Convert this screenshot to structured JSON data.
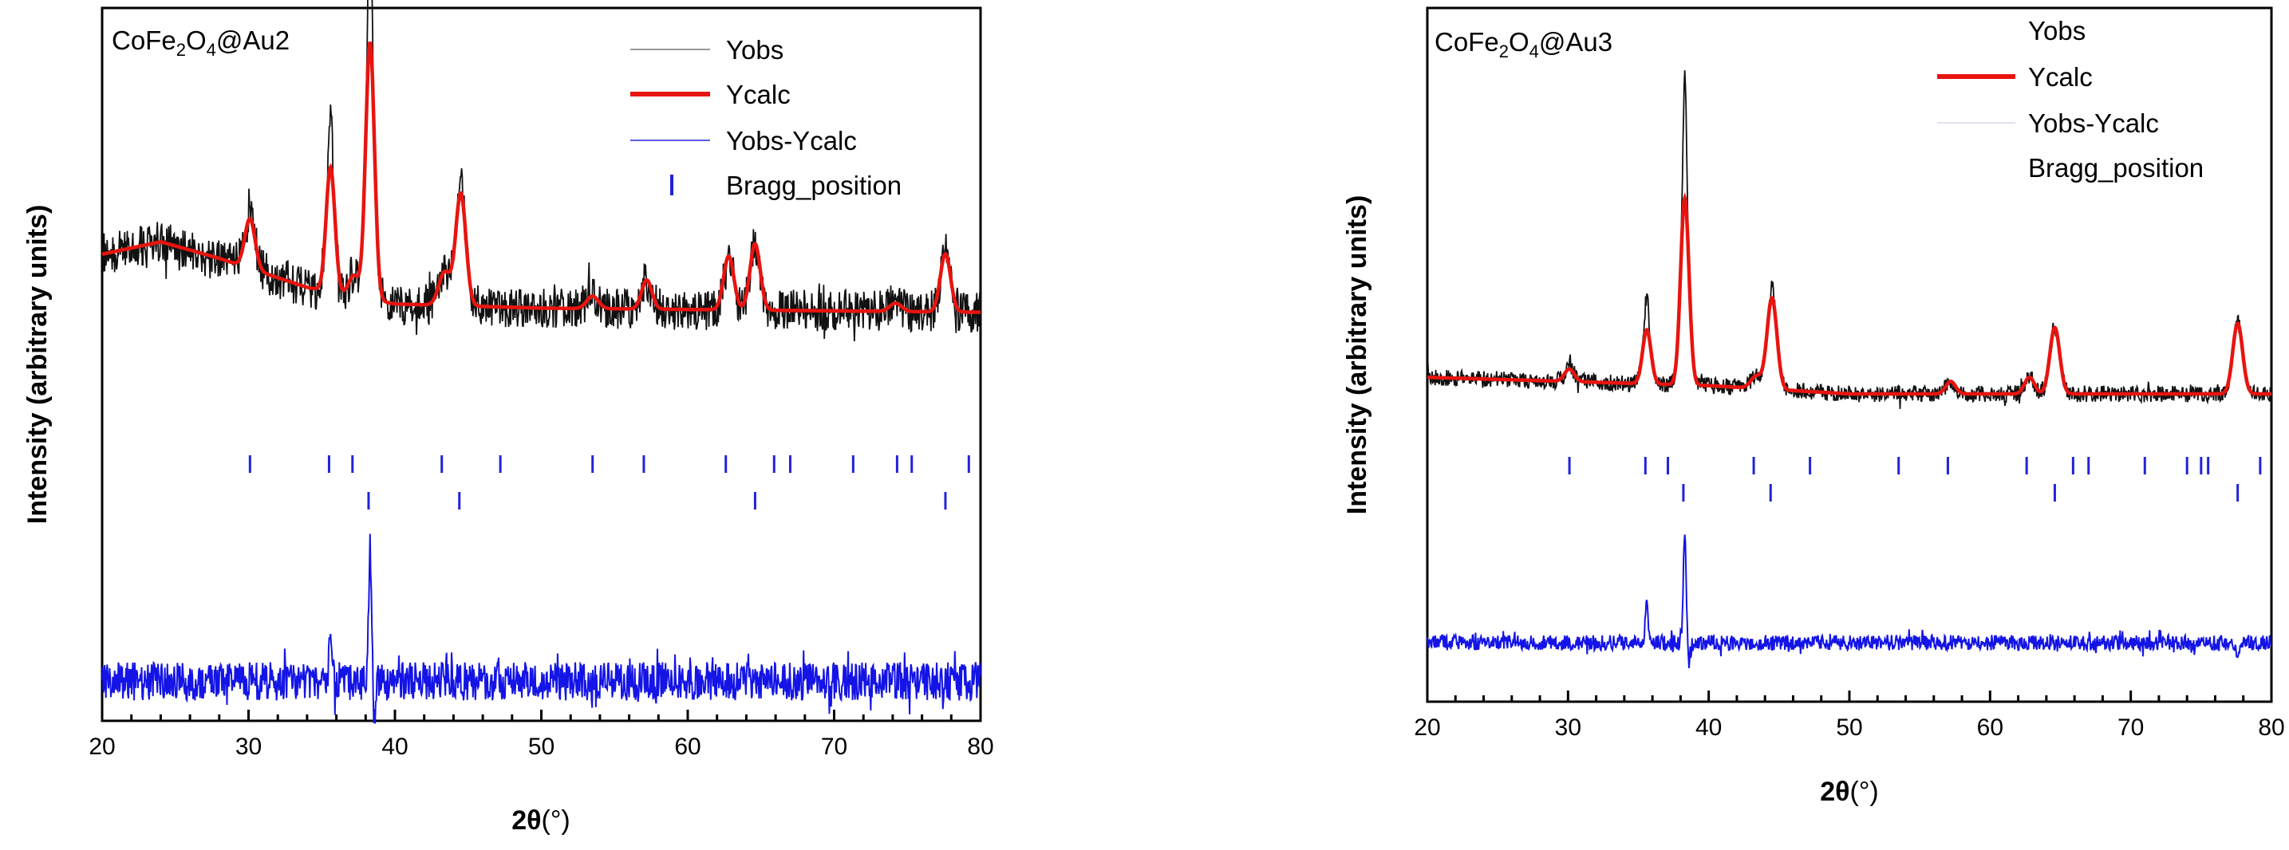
{
  "chart_data": [
    {
      "type": "line",
      "title": "CoFe2O4@Au2",
      "title_parts": {
        "a": "CoFe",
        "sub1": "2",
        "b": "O",
        "sub2": "4",
        "c": "@Au2"
      },
      "xlabel_sym": "2θ",
      "xlabel_unit": "(°)",
      "ylabel": "Intensity (arbitrary units)",
      "xlim": [
        20,
        80
      ],
      "xticks": [
        "20",
        "30",
        "40",
        "50",
        "60",
        "70",
        "80"
      ],
      "legend": [
        "Yobs",
        "Ycalc",
        "Yobs-Ycalc",
        "Bragg_position"
      ],
      "legend_position": "top-right",
      "colors": {
        "obs": "#111111",
        "calc": "#e8140f",
        "diff": "#1414e6",
        "bragg": "#2222d8"
      },
      "baseline": 0.14,
      "background": [
        [
          20,
          0.17
        ],
        [
          24,
          0.2
        ],
        [
          28,
          0.16
        ],
        [
          34,
          0.09
        ],
        [
          40,
          0.05
        ],
        [
          50,
          0.04
        ],
        [
          80,
          0.03
        ]
      ],
      "peaks": [
        [
          30.1,
          0.12,
          0.35
        ],
        [
          35.6,
          0.3,
          0.3
        ],
        [
          37.2,
          0.05,
          0.35
        ],
        [
          38.3,
          0.62,
          0.3
        ],
        [
          43.4,
          0.08,
          0.4
        ],
        [
          44.5,
          0.27,
          0.35
        ],
        [
          53.5,
          0.03,
          0.4
        ],
        [
          57.2,
          0.07,
          0.35
        ],
        [
          62.8,
          0.13,
          0.35
        ],
        [
          64.6,
          0.16,
          0.35
        ],
        [
          74.2,
          0.02,
          0.4
        ],
        [
          77.6,
          0.14,
          0.35
        ]
      ],
      "obs_spikes": [
        [
          35.6,
          0.12
        ],
        [
          38.3,
          0.38
        ],
        [
          44.5,
          0.05
        ],
        [
          30.1,
          0.03
        ]
      ],
      "noise_obs": 0.05,
      "diff_offset": -0.72,
      "noise_diff": 0.05,
      "diff_spikes": [
        [
          38.3,
          0.35
        ],
        [
          35.6,
          0.15
        ],
        [
          38.6,
          -0.08
        ]
      ],
      "bragg_row1": [
        30.1,
        35.5,
        37.1,
        43.2,
        47.2,
        53.5,
        57.0,
        62.6,
        65.9,
        67.0,
        71.3,
        74.3,
        75.3,
        79.2
      ],
      "bragg_row2": [
        38.2,
        44.4,
        64.6,
        77.6
      ]
    },
    {
      "type": "line",
      "title": "CoFe2O4@Au3",
      "title_parts": {
        "a": "CoFe",
        "sub1": "2",
        "b": "O",
        "sub2": "4",
        "c": "@Au3"
      },
      "xlabel_sym": "2θ",
      "xlabel_unit": "(°)",
      "ylabel": "Intensity (arbitrary units)",
      "xlim": [
        20,
        80
      ],
      "xticks": [
        "20",
        "30",
        "40",
        "50",
        "60",
        "70",
        "80"
      ],
      "legend": [
        "Yobs",
        "Ycalc",
        "Yobs-Ycalc",
        "Bragg_position"
      ],
      "legend_position": "top-center",
      "colors": {
        "obs": "#111111",
        "calc": "#e8140f",
        "diff": "#1414e6",
        "bragg": "#2222d8"
      },
      "baseline": 0.05,
      "background": [
        [
          20,
          0.04
        ],
        [
          30,
          0.03
        ],
        [
          40,
          0.02
        ],
        [
          50,
          0.0
        ],
        [
          80,
          0.0
        ]
      ],
      "peaks": [
        [
          30.1,
          0.03,
          0.35
        ],
        [
          35.6,
          0.13,
          0.3
        ],
        [
          38.3,
          0.45,
          0.3
        ],
        [
          43.4,
          0.03,
          0.4
        ],
        [
          44.5,
          0.22,
          0.35
        ],
        [
          57.2,
          0.03,
          0.35
        ],
        [
          62.8,
          0.04,
          0.35
        ],
        [
          64.6,
          0.16,
          0.35
        ],
        [
          77.6,
          0.17,
          0.35
        ]
      ],
      "obs_spikes": [
        [
          35.6,
          0.09
        ],
        [
          38.3,
          0.3
        ],
        [
          44.5,
          0.03
        ],
        [
          30.1,
          0.02
        ]
      ],
      "noise_obs": 0.02,
      "diff_offset": -0.55,
      "noise_diff": 0.02,
      "diff_spikes": [
        [
          38.3,
          0.3
        ],
        [
          35.6,
          0.1
        ],
        [
          38.6,
          -0.06
        ],
        [
          77.6,
          -0.04
        ]
      ],
      "bragg_row1": [
        30.1,
        35.5,
        37.1,
        43.2,
        47.2,
        53.5,
        57.0,
        62.6,
        65.9,
        67.0,
        71.0,
        74.0,
        75.0,
        75.5,
        79.2
      ],
      "bragg_row2": [
        38.2,
        44.4,
        64.6,
        77.6
      ]
    }
  ]
}
